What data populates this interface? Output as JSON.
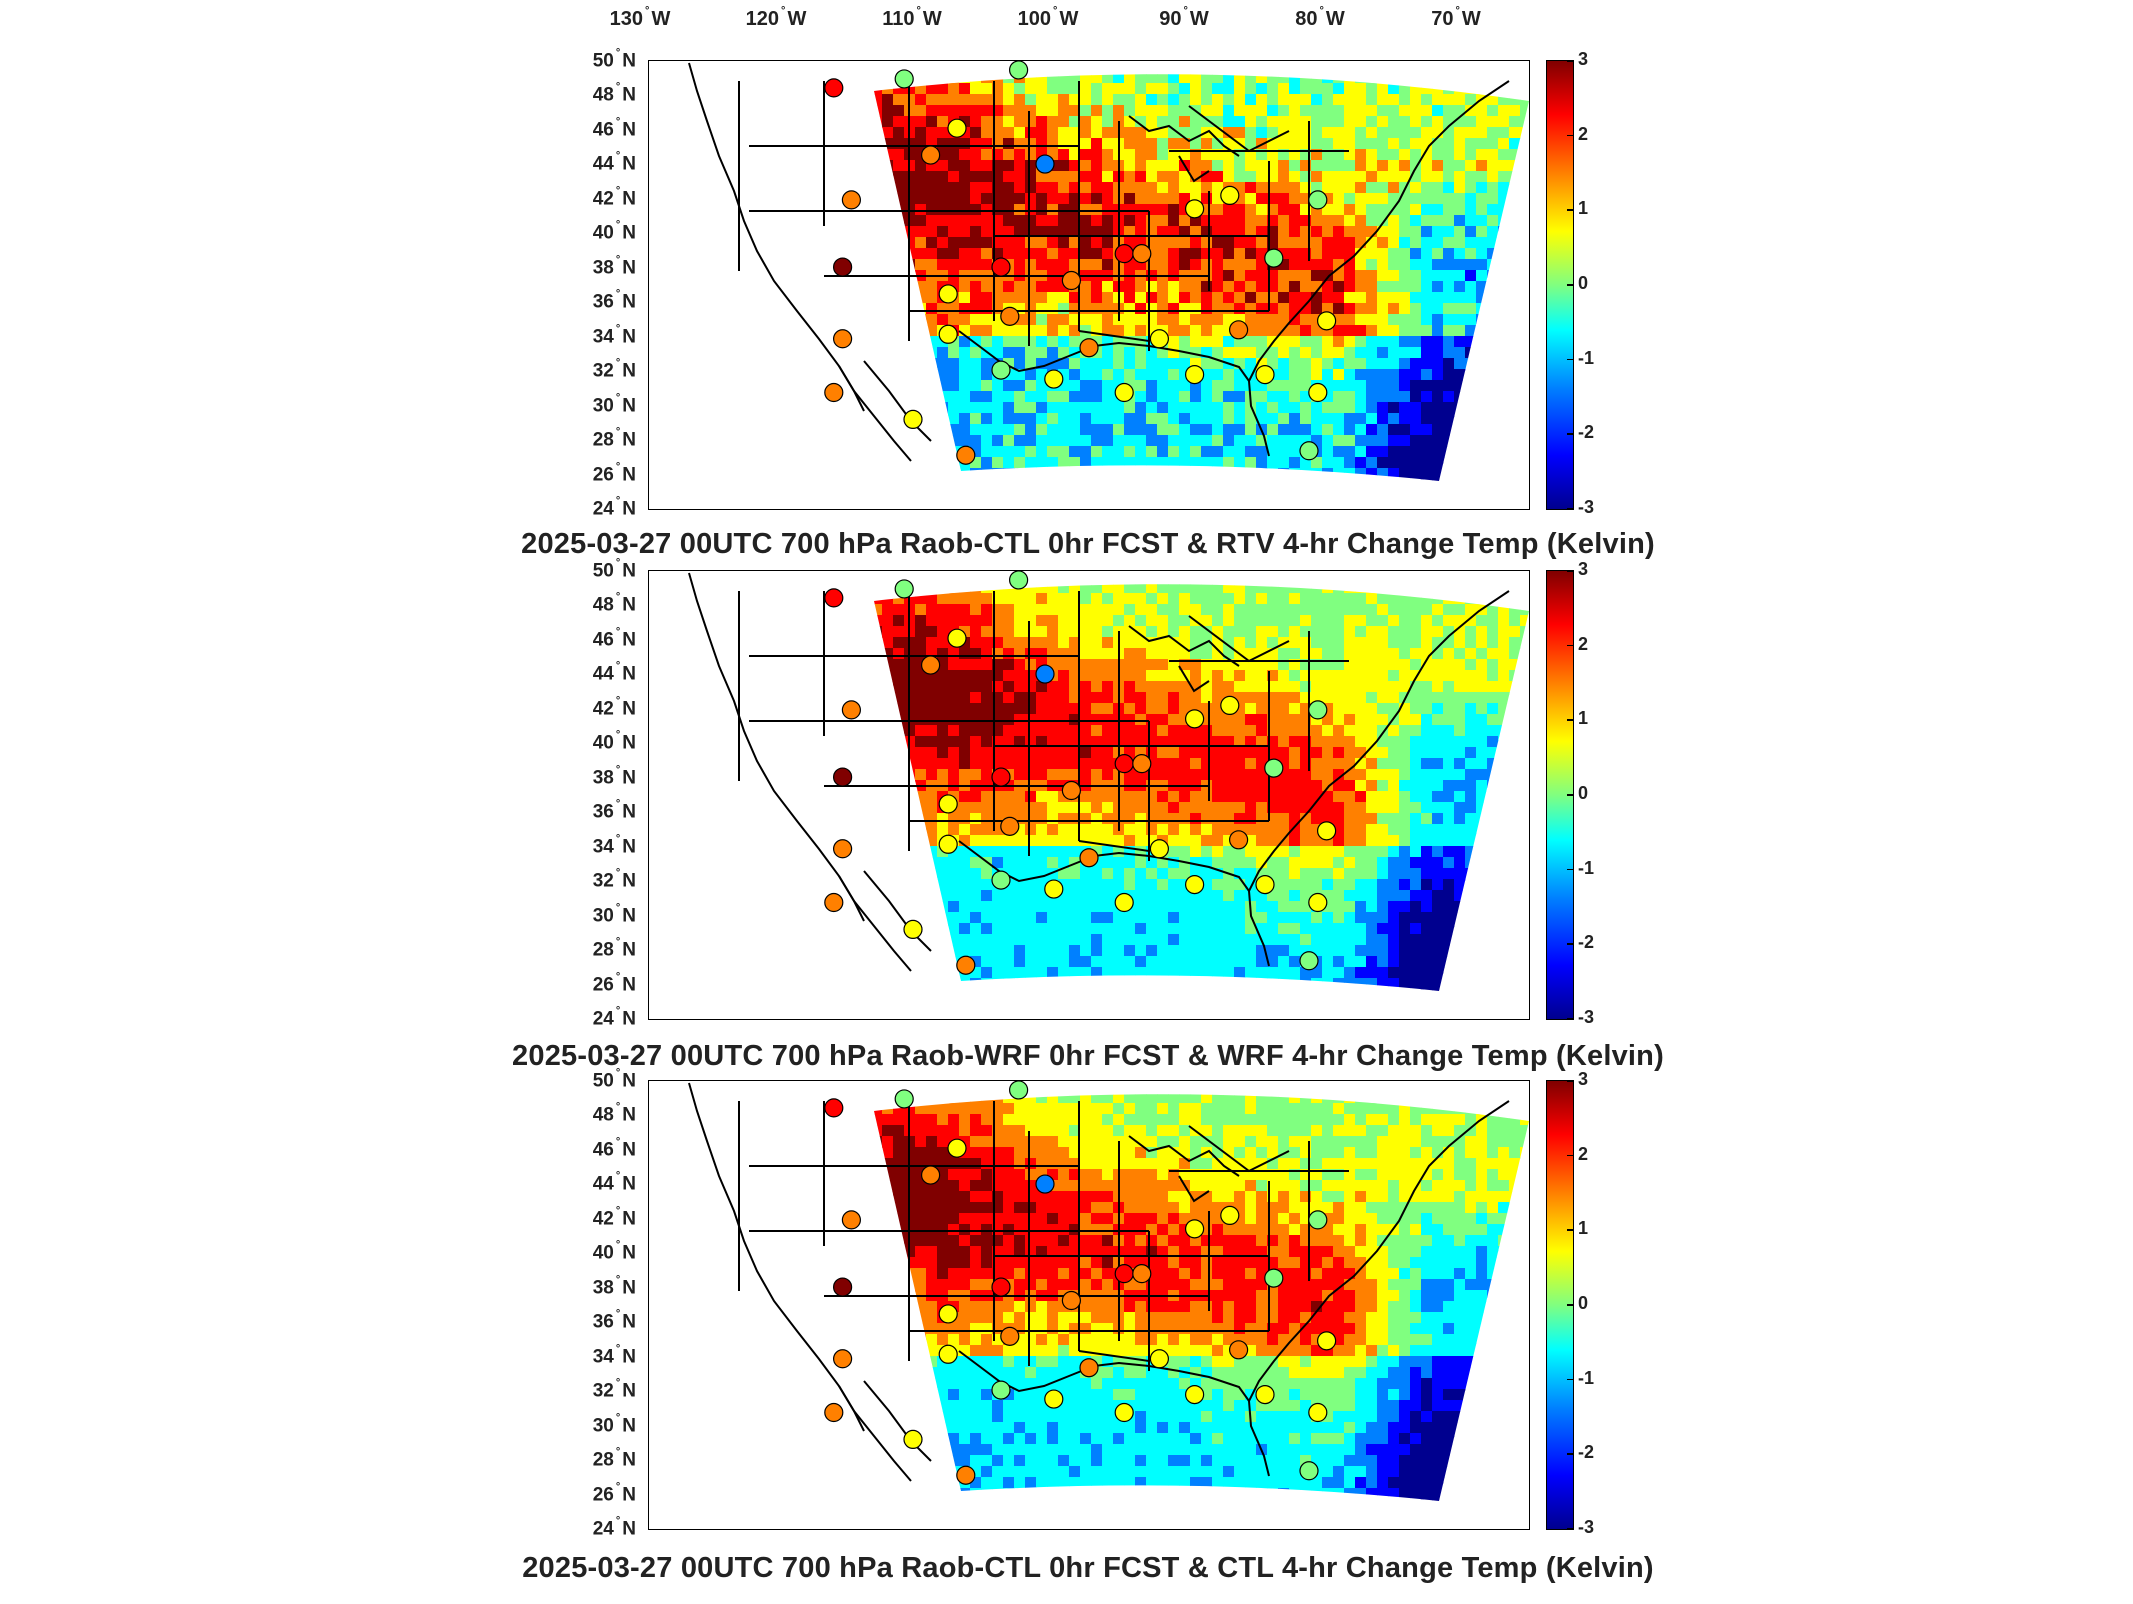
{
  "longitude_axis": {
    "labels": [
      {
        "deg": "130",
        "dir": "W"
      },
      {
        "deg": "120",
        "dir": "W"
      },
      {
        "deg": "110",
        "dir": "W"
      },
      {
        "deg": "100",
        "dir": "W"
      },
      {
        "deg": "90",
        "dir": "W"
      },
      {
        "deg": "80",
        "dir": "W"
      },
      {
        "deg": "70",
        "dir": "W"
      }
    ]
  },
  "latitude_axis": {
    "labels": [
      {
        "deg": "50",
        "dir": "N"
      },
      {
        "deg": "48",
        "dir": "N"
      },
      {
        "deg": "46",
        "dir": "N"
      },
      {
        "deg": "44",
        "dir": "N"
      },
      {
        "deg": "42",
        "dir": "N"
      },
      {
        "deg": "40",
        "dir": "N"
      },
      {
        "deg": "38",
        "dir": "N"
      },
      {
        "deg": "36",
        "dir": "N"
      },
      {
        "deg": "34",
        "dir": "N"
      },
      {
        "deg": "32",
        "dir": "N"
      },
      {
        "deg": "30",
        "dir": "N"
      },
      {
        "deg": "28",
        "dir": "N"
      },
      {
        "deg": "26",
        "dir": "N"
      },
      {
        "deg": "24",
        "dir": "N"
      }
    ]
  },
  "colorbar": {
    "ticks": [
      "3",
      "2",
      "1",
      "0",
      "-1",
      "-2",
      "-3"
    ],
    "range": [
      -3,
      3
    ],
    "colormap": [
      "#00008f",
      "#0000ff",
      "#0080ff",
      "#00ffff",
      "#80ff80",
      "#ffff00",
      "#ff8000",
      "#ff0000",
      "#800000"
    ]
  },
  "panels": [
    {
      "title": "2025-03-27 00UTC 700 hPa Raob-CTL 0hr FCST & RTV 4-hr Change Temp (Kelvin)"
    },
    {
      "title": "2025-03-27 00UTC 700 hPa Raob-WRF 0hr FCST & WRF 4-hr Change Temp (Kelvin)"
    },
    {
      "title": "2025-03-27 00UTC 700 hPa Raob-CTL 0hr FCST & CTL 4-hr Change Temp (Kelvin)"
    }
  ],
  "colors": {
    "frame": "#000000",
    "background": "#ffffff",
    "text": "#222222"
  }
}
